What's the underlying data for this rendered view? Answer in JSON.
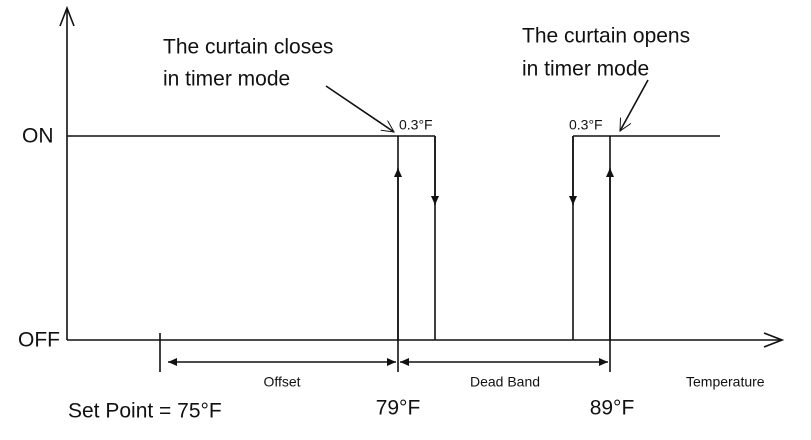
{
  "axis": {
    "on": "ON",
    "off": "OFF",
    "x_label": "Temperature"
  },
  "annotations": {
    "closes": [
      "The curtain closes",
      "in timer mode"
    ],
    "opens": [
      "The curtain opens",
      "in timer mode"
    ],
    "hysteresis_left": "0.3°F",
    "hysteresis_right": "0.3°F"
  },
  "ranges": {
    "offset": "Offset",
    "dead_band": "Dead Band"
  },
  "points": {
    "set_point": "Set Point = 75°F",
    "close": "79°F",
    "open": "89°F"
  }
}
